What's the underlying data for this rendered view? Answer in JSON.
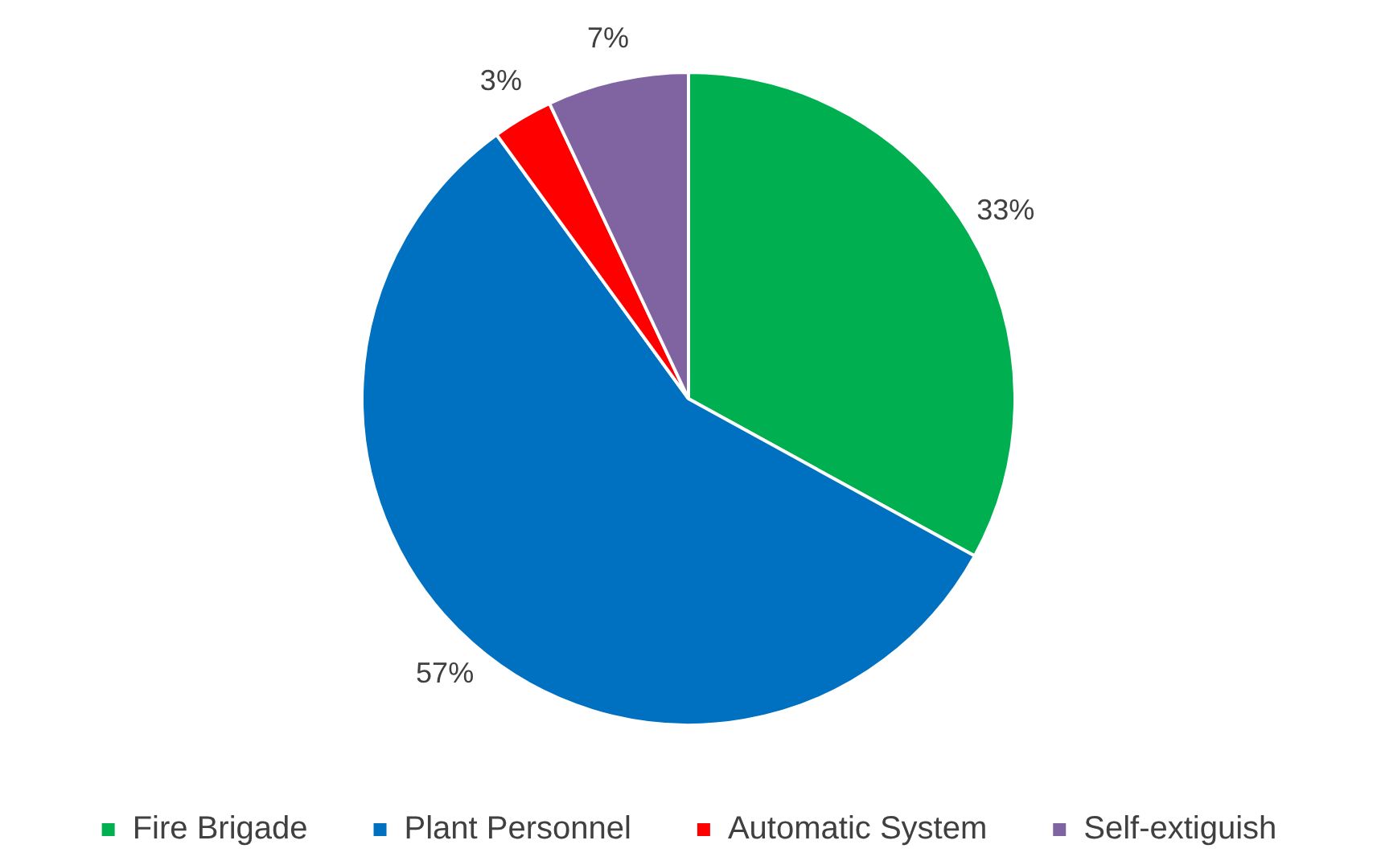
{
  "chart_data": {
    "type": "pie",
    "categories": [
      "Fire Brigade",
      "Plant Personnel",
      "Automatic System",
      "Self-extiguish"
    ],
    "values": [
      33,
      57,
      3,
      7
    ],
    "colors": [
      "#00b050",
      "#0070c0",
      "#ff0000",
      "#8064a2"
    ],
    "value_labels": [
      "33%",
      "57%",
      "3%",
      "7%"
    ],
    "legend": "bottom"
  }
}
